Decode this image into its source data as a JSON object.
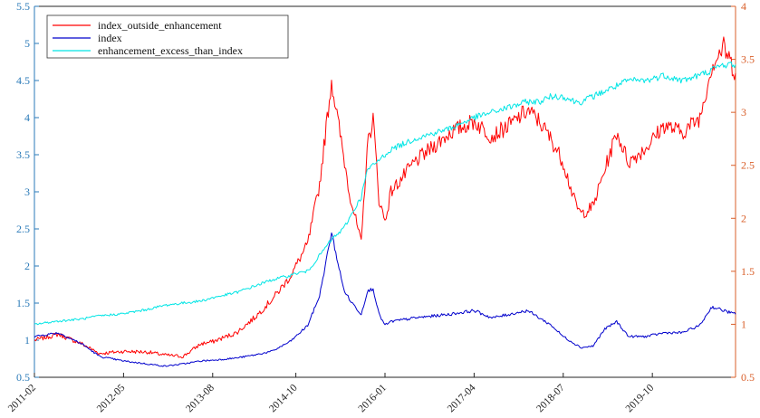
{
  "chart_data": {
    "type": "line",
    "title": "",
    "xlabel": "",
    "ylabel": "",
    "x_ticks": [
      "2011-02",
      "2012-05",
      "2013-08",
      "2014-10",
      "2016-01",
      "2017-04",
      "2018-07",
      "2019-10"
    ],
    "x_range": [
      "2011-02",
      "2020-12"
    ],
    "y_left": {
      "ylim": [
        0.5,
        5.5
      ],
      "ticks": [
        "0.5",
        "1",
        "1.5",
        "2",
        "2.5",
        "3",
        "3.5",
        "4",
        "4.5",
        "5",
        "5.5"
      ],
      "color": "#2a7ab8"
    },
    "y_right": {
      "ylim": [
        0.5,
        4
      ],
      "ticks": [
        "0.5",
        "1",
        "1.5",
        "2",
        "2.5",
        "3",
        "3.5",
        "4"
      ],
      "color": "#d95f2a"
    },
    "grid": false,
    "legend_position": "top-left",
    "series": [
      {
        "name": "index_outside_enhancement",
        "color": "#ff0000",
        "axis": "left",
        "x": [
          "2011-02",
          "2011-06",
          "2011-10",
          "2012-01",
          "2012-05",
          "2012-09",
          "2012-12",
          "2013-03",
          "2013-06",
          "2013-08",
          "2013-12",
          "2014-03",
          "2014-06",
          "2014-09",
          "2014-10",
          "2014-12",
          "2015-02",
          "2015-04",
          "2015-06",
          "2015-07",
          "2015-09",
          "2015-10",
          "2015-11",
          "2015-12",
          "2016-01",
          "2016-02",
          "2016-06",
          "2016-12",
          "2017-04",
          "2017-07",
          "2017-10",
          "2018-01",
          "2018-03",
          "2018-05",
          "2018-07",
          "2018-09",
          "2018-10",
          "2018-12",
          "2019-02",
          "2019-04",
          "2019-06",
          "2019-09",
          "2019-12",
          "2020-03",
          "2020-06",
          "2020-08",
          "2020-10",
          "2020-12"
        ],
        "y": [
          1.0,
          1.08,
          0.95,
          0.82,
          0.85,
          0.84,
          0.8,
          0.78,
          0.95,
          0.98,
          1.1,
          1.3,
          1.55,
          1.85,
          2.0,
          2.3,
          3.1,
          4.5,
          3.5,
          3.0,
          2.3,
          3.6,
          4.0,
          2.9,
          2.6,
          3.0,
          3.4,
          3.8,
          3.95,
          3.75,
          3.9,
          4.1,
          3.95,
          3.7,
          3.4,
          2.85,
          2.7,
          2.8,
          3.3,
          3.8,
          3.4,
          3.6,
          3.9,
          3.8,
          4.0,
          4.7,
          4.95,
          4.6
        ]
      },
      {
        "name": "index",
        "color": "#0000cc",
        "axis": "left",
        "x": [
          "2011-02",
          "2011-06",
          "2011-10",
          "2012-01",
          "2012-05",
          "2012-09",
          "2012-12",
          "2013-03",
          "2013-06",
          "2013-08",
          "2013-12",
          "2014-03",
          "2014-06",
          "2014-09",
          "2014-10",
          "2014-12",
          "2015-02",
          "2015-04",
          "2015-06",
          "2015-07",
          "2015-09",
          "2015-10",
          "2015-11",
          "2015-12",
          "2016-01",
          "2016-02",
          "2016-06",
          "2016-12",
          "2017-04",
          "2017-07",
          "2017-10",
          "2018-01",
          "2018-03",
          "2018-05",
          "2018-07",
          "2018-09",
          "2018-10",
          "2018-12",
          "2019-02",
          "2019-04",
          "2019-06",
          "2019-09",
          "2019-12",
          "2020-03",
          "2020-06",
          "2020-08",
          "2020-10",
          "2020-12"
        ],
        "y": [
          1.05,
          1.1,
          0.95,
          0.78,
          0.72,
          0.68,
          0.65,
          0.68,
          0.72,
          0.73,
          0.76,
          0.8,
          0.85,
          0.98,
          1.05,
          1.2,
          1.6,
          2.45,
          1.7,
          1.55,
          1.35,
          1.65,
          1.7,
          1.35,
          1.2,
          1.25,
          1.3,
          1.35,
          1.4,
          1.3,
          1.35,
          1.4,
          1.3,
          1.2,
          1.05,
          0.95,
          0.9,
          0.92,
          1.15,
          1.25,
          1.05,
          1.05,
          1.1,
          1.1,
          1.2,
          1.45,
          1.4,
          1.35
        ]
      },
      {
        "name": "enhancement_excess_than_index",
        "color": "#00e5e5",
        "axis": "right",
        "x": [
          "2011-02",
          "2011-06",
          "2011-10",
          "2012-01",
          "2012-05",
          "2012-09",
          "2012-12",
          "2013-03",
          "2013-06",
          "2013-08",
          "2013-12",
          "2014-03",
          "2014-06",
          "2014-09",
          "2014-10",
          "2014-12",
          "2015-02",
          "2015-04",
          "2015-06",
          "2015-07",
          "2015-09",
          "2015-10",
          "2015-11",
          "2015-12",
          "2016-01",
          "2016-02",
          "2016-06",
          "2016-12",
          "2017-04",
          "2017-07",
          "2017-10",
          "2018-01",
          "2018-03",
          "2018-05",
          "2018-07",
          "2018-09",
          "2018-10",
          "2018-12",
          "2019-02",
          "2019-04",
          "2019-06",
          "2019-09",
          "2019-12",
          "2020-03",
          "2020-06",
          "2020-08",
          "2020-10",
          "2020-12"
        ],
        "y": [
          1.0,
          1.03,
          1.05,
          1.08,
          1.1,
          1.14,
          1.18,
          1.2,
          1.22,
          1.25,
          1.3,
          1.36,
          1.42,
          1.46,
          1.48,
          1.5,
          1.65,
          1.8,
          1.9,
          2.0,
          2.2,
          2.45,
          2.5,
          2.55,
          2.6,
          2.65,
          2.75,
          2.85,
          2.95,
          3.0,
          3.05,
          3.1,
          3.1,
          3.15,
          3.15,
          3.1,
          3.1,
          3.15,
          3.2,
          3.25,
          3.3,
          3.3,
          3.35,
          3.3,
          3.35,
          3.4,
          3.45,
          3.45
        ]
      }
    ]
  }
}
